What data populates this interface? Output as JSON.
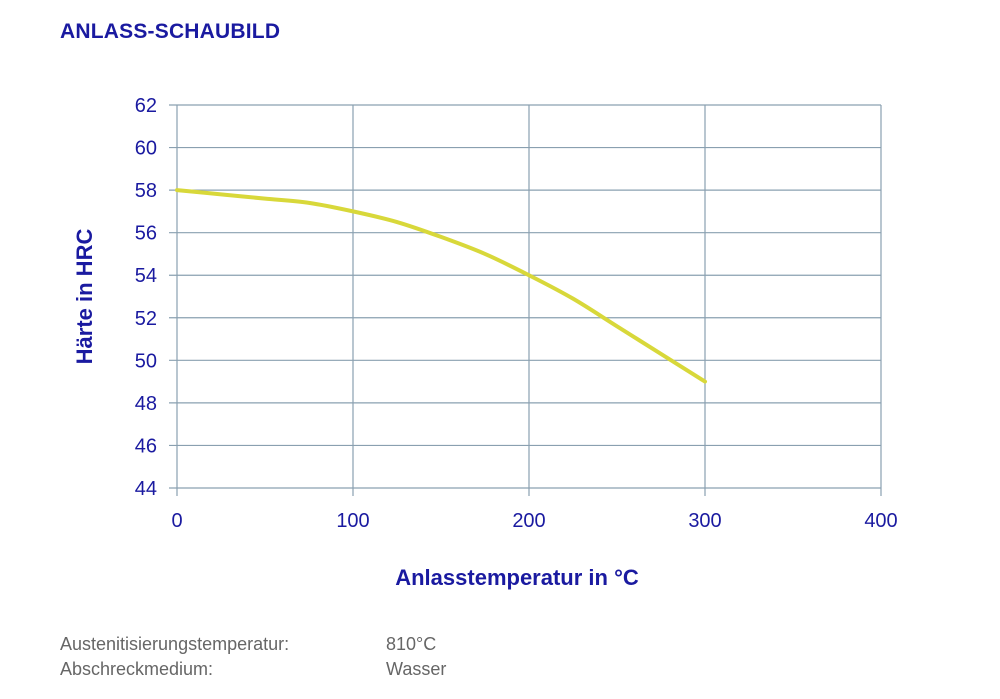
{
  "title": "ANLASS-SCHAUBILD",
  "chart_data": {
    "type": "line",
    "xlabel": "Anlasstemperatur in °C",
    "ylabel": "Härte in HRC",
    "xlim": [
      0,
      400
    ],
    "ylim": [
      44,
      62
    ],
    "xticks": [
      0,
      100,
      200,
      300,
      400
    ],
    "yticks": [
      44,
      46,
      48,
      50,
      52,
      54,
      56,
      58,
      60,
      62
    ],
    "grid": true,
    "colors": {
      "line": "#d8d83a",
      "grid": "#8aa0b0",
      "text": "#1a1aa0"
    },
    "series": [
      {
        "x": [
          0,
          25,
          50,
          75,
          100,
          125,
          150,
          175,
          200,
          225,
          250,
          275,
          300
        ],
        "y": [
          58,
          57.8,
          57.6,
          57.4,
          57,
          56.5,
          55.8,
          55,
          54,
          52.9,
          51.6,
          50.3,
          49
        ]
      }
    ]
  },
  "info": [
    {
      "key": "Austenitisierungstemperatur:",
      "value": "810°C"
    },
    {
      "key": "Abschreckmedium:",
      "value": "Wasser"
    }
  ]
}
